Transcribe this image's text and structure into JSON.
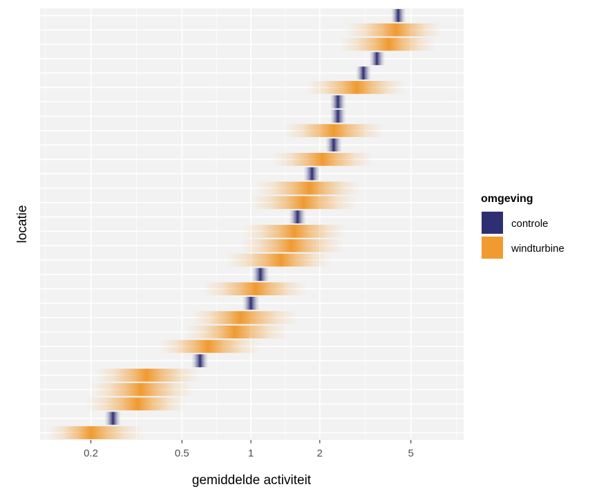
{
  "chart_data": {
    "type": "density-strip",
    "xlabel": "gemiddelde activiteit",
    "ylabel": "locatie",
    "x_scale": "log",
    "xlim": [
      0.12,
      8.5
    ],
    "x_ticks": [
      {
        "value": 0.2,
        "label": "0.2"
      },
      {
        "value": 0.5,
        "label": "0.5"
      },
      {
        "value": 1,
        "label": "1"
      },
      {
        "value": 2,
        "label": "2"
      },
      {
        "value": 5,
        "label": "5"
      }
    ],
    "grid": true,
    "legend": {
      "title": "omgeving",
      "position": "right",
      "entries": [
        {
          "label": "controle",
          "color": "#2e2e72"
        },
        {
          "label": "windturbine",
          "color": "#f09a30"
        }
      ]
    },
    "rows": [
      {
        "group": "controle",
        "center": 4.4,
        "low": 4.1,
        "high": 4.75
      },
      {
        "group": "windturbine",
        "center": 4.3,
        "low": 2.6,
        "high": 6.8
      },
      {
        "group": "windturbine",
        "center": 4.0,
        "low": 2.45,
        "high": 6.4
      },
      {
        "group": "controle",
        "center": 3.55,
        "low": 3.3,
        "high": 3.85
      },
      {
        "group": "controle",
        "center": 3.1,
        "low": 2.88,
        "high": 3.35
      },
      {
        "group": "windturbine",
        "center": 2.9,
        "low": 1.75,
        "high": 4.7
      },
      {
        "group": "controle",
        "center": 2.4,
        "low": 2.22,
        "high": 2.6
      },
      {
        "group": "controle",
        "center": 2.4,
        "low": 2.22,
        "high": 2.6
      },
      {
        "group": "windturbine",
        "center": 2.3,
        "low": 1.4,
        "high": 3.8
      },
      {
        "group": "controle",
        "center": 2.3,
        "low": 2.12,
        "high": 2.5
      },
      {
        "group": "windturbine",
        "center": 2.05,
        "low": 1.25,
        "high": 3.4
      },
      {
        "group": "controle",
        "center": 1.85,
        "low": 1.7,
        "high": 2.0
      },
      {
        "group": "windturbine",
        "center": 1.8,
        "low": 1.05,
        "high": 3.0
      },
      {
        "group": "windturbine",
        "center": 1.7,
        "low": 1.0,
        "high": 2.9
      },
      {
        "group": "controle",
        "center": 1.6,
        "low": 1.47,
        "high": 1.74
      },
      {
        "group": "windturbine",
        "center": 1.55,
        "low": 0.92,
        "high": 2.6
      },
      {
        "group": "windturbine",
        "center": 1.5,
        "low": 0.9,
        "high": 2.55
      },
      {
        "group": "windturbine",
        "center": 1.35,
        "low": 0.78,
        "high": 2.25
      },
      {
        "group": "controle",
        "center": 1.1,
        "low": 1.01,
        "high": 1.2
      },
      {
        "group": "windturbine",
        "center": 1.05,
        "low": 0.62,
        "high": 1.75
      },
      {
        "group": "controle",
        "center": 1.0,
        "low": 0.92,
        "high": 1.09
      },
      {
        "group": "windturbine",
        "center": 0.9,
        "low": 0.55,
        "high": 1.6
      },
      {
        "group": "windturbine",
        "center": 0.85,
        "low": 0.52,
        "high": 1.45
      },
      {
        "group": "windturbine",
        "center": 0.65,
        "low": 0.4,
        "high": 1.1
      },
      {
        "group": "controle",
        "center": 0.6,
        "low": 0.55,
        "high": 0.65
      },
      {
        "group": "windturbine",
        "center": 0.35,
        "low": 0.21,
        "high": 0.6
      },
      {
        "group": "windturbine",
        "center": 0.33,
        "low": 0.2,
        "high": 0.56
      },
      {
        "group": "windturbine",
        "center": 0.32,
        "low": 0.19,
        "high": 0.52
      },
      {
        "group": "controle",
        "center": 0.25,
        "low": 0.23,
        "high": 0.27
      },
      {
        "group": "windturbine",
        "center": 0.2,
        "low": 0.13,
        "high": 0.34
      }
    ]
  }
}
